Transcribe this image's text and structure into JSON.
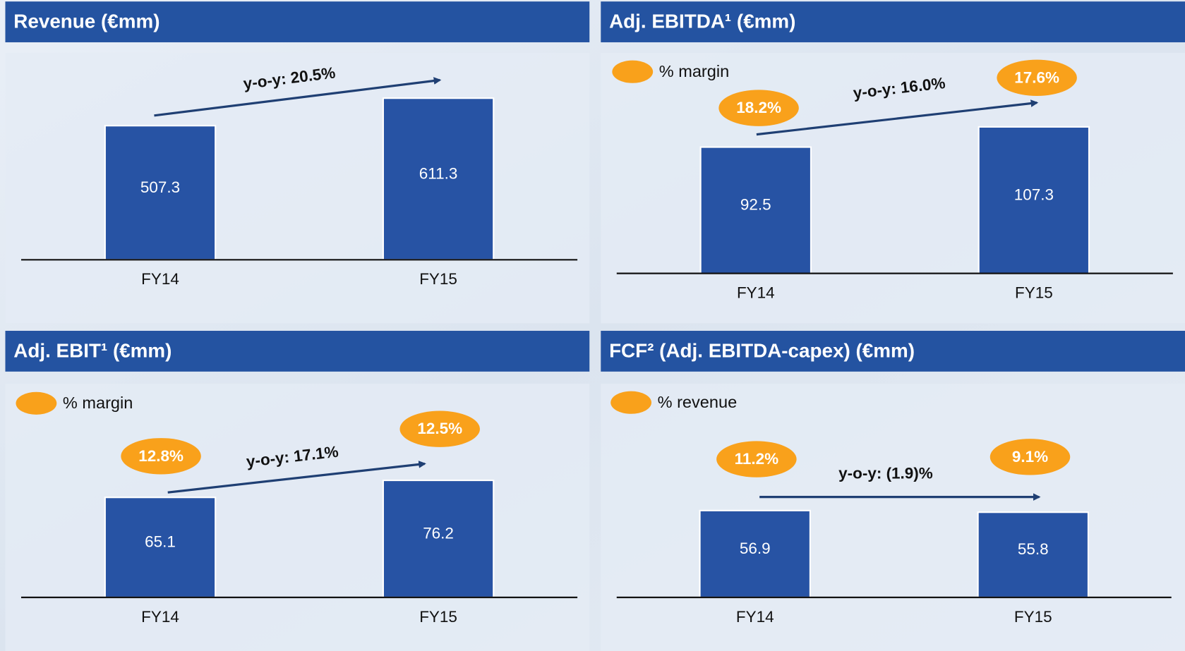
{
  "chart_data": [
    {
      "type": "bar",
      "title": "Revenue (€mm)",
      "categories": [
        "FY14",
        "FY15"
      ],
      "values": [
        507.3,
        611.3
      ],
      "color": "#2753a4",
      "annotation": "y-o-y: 20.5%"
    },
    {
      "type": "bar",
      "title": "Adj. EBITDA¹ (€mm)",
      "categories": [
        "FY14",
        "FY15"
      ],
      "values": [
        92.5,
        107.3
      ],
      "color": "#2753a4",
      "annotation": "y-o-y: 16.0%",
      "margin": {
        "name": "% margin",
        "color": "#f9a11b",
        "values": [
          18.2,
          17.6
        ],
        "value_labels": [
          "18.2%",
          "17.6%"
        ]
      }
    },
    {
      "type": "bar",
      "title": "Adj. EBIT¹ (€mm)",
      "categories": [
        "FY14",
        "FY15"
      ],
      "values": [
        65.1,
        76.2
      ],
      "color": "#2753a4",
      "annotation": "y-o-y: 17.1%",
      "margin": {
        "name": "% margin",
        "color": "#f9a11b",
        "values": [
          12.8,
          12.5
        ],
        "value_labels": [
          "12.8%",
          "12.5%"
        ]
      }
    },
    {
      "type": "bar",
      "title": "FCF² (Adj. EBITDA-capex) (€mm)",
      "categories": [
        "FY14",
        "FY15"
      ],
      "values": [
        56.9,
        55.8
      ],
      "color": "#2753a4",
      "annotation": "y-o-y: (1.9)%",
      "margin": {
        "name": "% revenue",
        "color": "#f9a11b",
        "values": [
          11.2,
          9.1
        ],
        "value_labels": [
          "11.2%",
          "9.1%"
        ]
      }
    }
  ]
}
